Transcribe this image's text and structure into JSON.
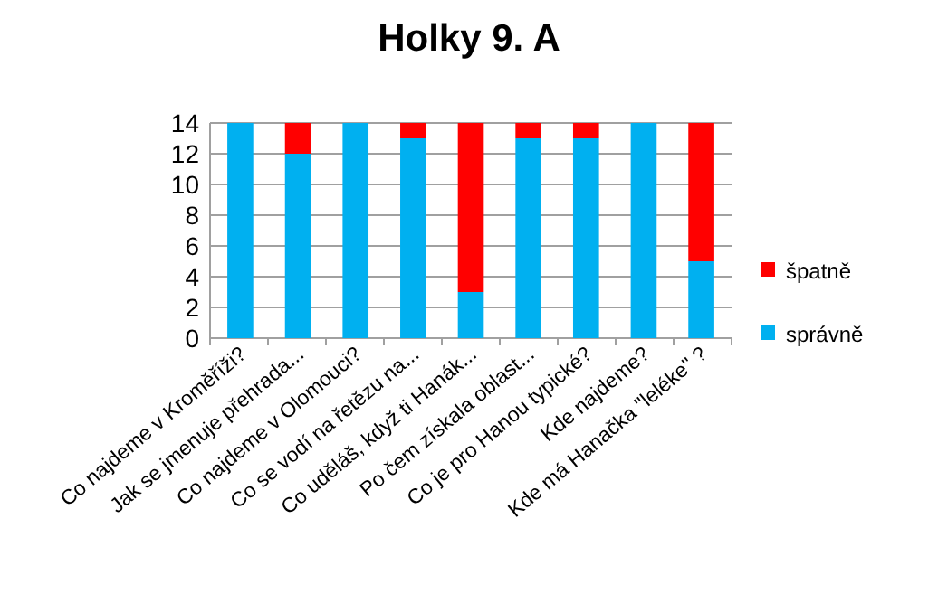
{
  "chart_data": {
    "type": "bar",
    "title": "Holky 9. A",
    "stacked": true,
    "categories": [
      "Co najdeme v Kroměříži?",
      "Jak se jmenuje přehrada...",
      "Co najdeme v Olomouci?",
      "Co se vodí na řetězu na...",
      "Co uděláš, když ti Hanák...",
      "Po čem získala oblast...",
      "Co je pro Hanou typické?",
      "Kde najdeme?",
      "Kde má Hanačka \"leléke\" ?"
    ],
    "series": [
      {
        "name": "správně",
        "color": "#00b0f0",
        "values": [
          14,
          12,
          14,
          13,
          3,
          13,
          13,
          14,
          5
        ]
      },
      {
        "name": "špatně",
        "color": "#ff0000",
        "values": [
          0,
          2,
          0,
          1,
          11,
          1,
          1,
          0,
          9
        ]
      }
    ],
    "ylim": [
      0,
      14
    ],
    "yticks": [
      0,
      2,
      4,
      6,
      8,
      10,
      12,
      14
    ],
    "grid": "y",
    "legend": "right"
  }
}
